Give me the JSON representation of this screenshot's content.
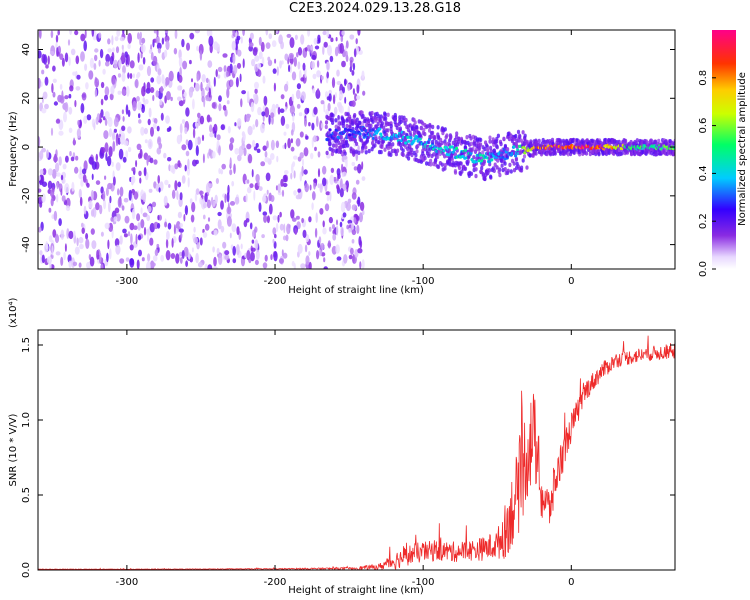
{
  "figure_title": "C2E3.2024.029.13.28.G18",
  "colors": {
    "snr_line": "#ee2a2a",
    "axis": "#000000",
    "spectro_bg": "#ffffff"
  },
  "chart_data": [
    {
      "type": "heatmap",
      "title": "",
      "xlabel": "Height of straight line (km)",
      "ylabel": "Frequency (Hz)",
      "xlim": [
        -360,
        70
      ],
      "ylim": [
        -50,
        48
      ],
      "x_ticks": [
        -300,
        -200,
        -100,
        0
      ],
      "y_ticks": [
        -40,
        -20,
        0,
        20,
        40
      ],
      "colorbar": {
        "label": "Normalized spectral amplitude",
        "range": [
          0.0,
          1.0
        ],
        "ticks": [
          "0.0",
          "0.2",
          "0.4",
          "0.6",
          "0.8"
        ],
        "tick_values": [
          0.0,
          0.2,
          0.4,
          0.6,
          0.8
        ],
        "colormap": "rainbow (white → violet → blue → cyan → green → yellow → red → magenta)"
      },
      "noise_region_x": [
        -360,
        -140
      ],
      "ridge": [
        {
          "x": -165,
          "y": 5,
          "amp": 0.3
        },
        {
          "x": -140,
          "y": 6,
          "amp": 0.35
        },
        {
          "x": -120,
          "y": 5,
          "amp": 0.4
        },
        {
          "x": -100,
          "y": 2,
          "amp": 0.4
        },
        {
          "x": -80,
          "y": -2,
          "amp": 0.45
        },
        {
          "x": -60,
          "y": -5,
          "amp": 0.45
        },
        {
          "x": -40,
          "y": -2,
          "amp": 0.35
        },
        {
          "x": -20,
          "y": 0,
          "amp": 0.95
        },
        {
          "x": 0,
          "y": 0,
          "amp": 0.95
        },
        {
          "x": 20,
          "y": 0,
          "amp": 0.95
        },
        {
          "x": 40,
          "y": 0,
          "amp": 0.55
        },
        {
          "x": 70,
          "y": 0,
          "amp": 0.55
        }
      ]
    },
    {
      "type": "line",
      "title": "",
      "xlabel": "Height of straight line (km)",
      "ylabel": "SNR (10 * V/V)",
      "y_multiplier_label": "(x10⁴)",
      "xlim": [
        -360,
        70
      ],
      "ylim": [
        0,
        1.6
      ],
      "x_ticks": [
        -300,
        -200,
        -100,
        0
      ],
      "y_ticks": [
        "0.0",
        "0.5",
        "1.0",
        "1.5"
      ],
      "y_tick_values": [
        0.0,
        0.5,
        1.0,
        1.5
      ],
      "series": [
        {
          "x": [
            -360,
            -300,
            -250,
            -200,
            -150,
            -130,
            -120,
            -110,
            -100,
            -90,
            -80,
            -70,
            -60,
            -50,
            -45,
            -40,
            -35,
            -30,
            -25,
            -20,
            -15,
            -10,
            -5,
            0,
            10,
            20,
            30,
            40,
            50,
            60,
            70
          ],
          "values": [
            0.005,
            0.005,
            0.006,
            0.007,
            0.01,
            0.02,
            0.06,
            0.1,
            0.12,
            0.13,
            0.12,
            0.13,
            0.14,
            0.17,
            0.25,
            0.4,
            0.55,
            0.8,
            0.9,
            0.5,
            0.4,
            0.62,
            0.8,
            0.95,
            1.2,
            1.32,
            1.4,
            1.42,
            1.44,
            1.45,
            1.46
          ],
          "noise": [
            0.002,
            0.002,
            0.002,
            0.003,
            0.008,
            0.02,
            0.06,
            0.07,
            0.07,
            0.07,
            0.07,
            0.07,
            0.08,
            0.1,
            0.18,
            0.25,
            0.3,
            0.35,
            0.3,
            0.2,
            0.15,
            0.15,
            0.12,
            0.1,
            0.07,
            0.06,
            0.05,
            0.05,
            0.05,
            0.05,
            0.05
          ]
        }
      ]
    }
  ]
}
